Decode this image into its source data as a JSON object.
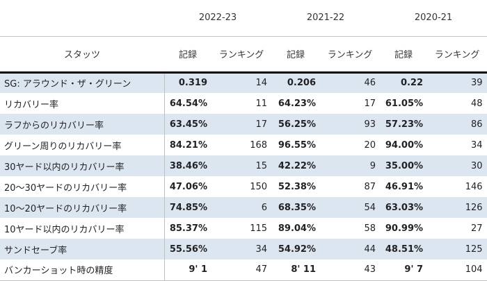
{
  "seasons": [
    "2022-23",
    "2021-22",
    "2020-21"
  ],
  "headers": {
    "stat": "スタッツ",
    "record": "記録",
    "ranking": "ランキング"
  },
  "rows": [
    {
      "name": "SG: アラウンド・ザ・グリーン",
      "values": [
        [
          "0.319",
          "14"
        ],
        [
          "0.206",
          "46"
        ],
        [
          "0.22",
          "39"
        ]
      ]
    },
    {
      "name": "リカバリー率",
      "values": [
        [
          "64.54%",
          "11"
        ],
        [
          "64.23%",
          "17"
        ],
        [
          "61.05%",
          "48"
        ]
      ]
    },
    {
      "name": "ラフからのリカバリー率",
      "values": [
        [
          "63.45%",
          "17"
        ],
        [
          "56.25%",
          "93"
        ],
        [
          "57.23%",
          "86"
        ]
      ]
    },
    {
      "name": "グリーン周りのリカバリー率",
      "values": [
        [
          "84.21%",
          "168"
        ],
        [
          "96.55%",
          "20"
        ],
        [
          "94.00%",
          "34"
        ]
      ]
    },
    {
      "name": "30ヤード以内のリカバリー率",
      "values": [
        [
          "38.46%",
          "15"
        ],
        [
          "42.22%",
          "9"
        ],
        [
          "35.00%",
          "30"
        ]
      ]
    },
    {
      "name": "20〜30ヤードのリカバリー率",
      "values": [
        [
          "47.06%",
          "150"
        ],
        [
          "52.38%",
          "87"
        ],
        [
          "46.91%",
          "146"
        ]
      ]
    },
    {
      "name": "10〜20ヤードのリカバリー率",
      "values": [
        [
          "74.85%",
          "6"
        ],
        [
          "68.35%",
          "54"
        ],
        [
          "63.03%",
          "126"
        ]
      ]
    },
    {
      "name": "10ヤード以内のリカバリー率",
      "values": [
        [
          "85.37%",
          "115"
        ],
        [
          "89.04%",
          "58"
        ],
        [
          "90.99%",
          "27"
        ]
      ]
    },
    {
      "name": "サンドセーブ率",
      "values": [
        [
          "55.56%",
          "34"
        ],
        [
          "54.92%",
          "44"
        ],
        [
          "48.51%",
          "125"
        ]
      ]
    },
    {
      "name": "バンカーショット時の精度",
      "values": [
        [
          "9' 1",
          "47"
        ],
        [
          "8' 11",
          "43"
        ],
        [
          "9' 7",
          "104"
        ]
      ]
    }
  ],
  "colors": {
    "shade": "#dce6f1",
    "header_rule": "#000000"
  }
}
